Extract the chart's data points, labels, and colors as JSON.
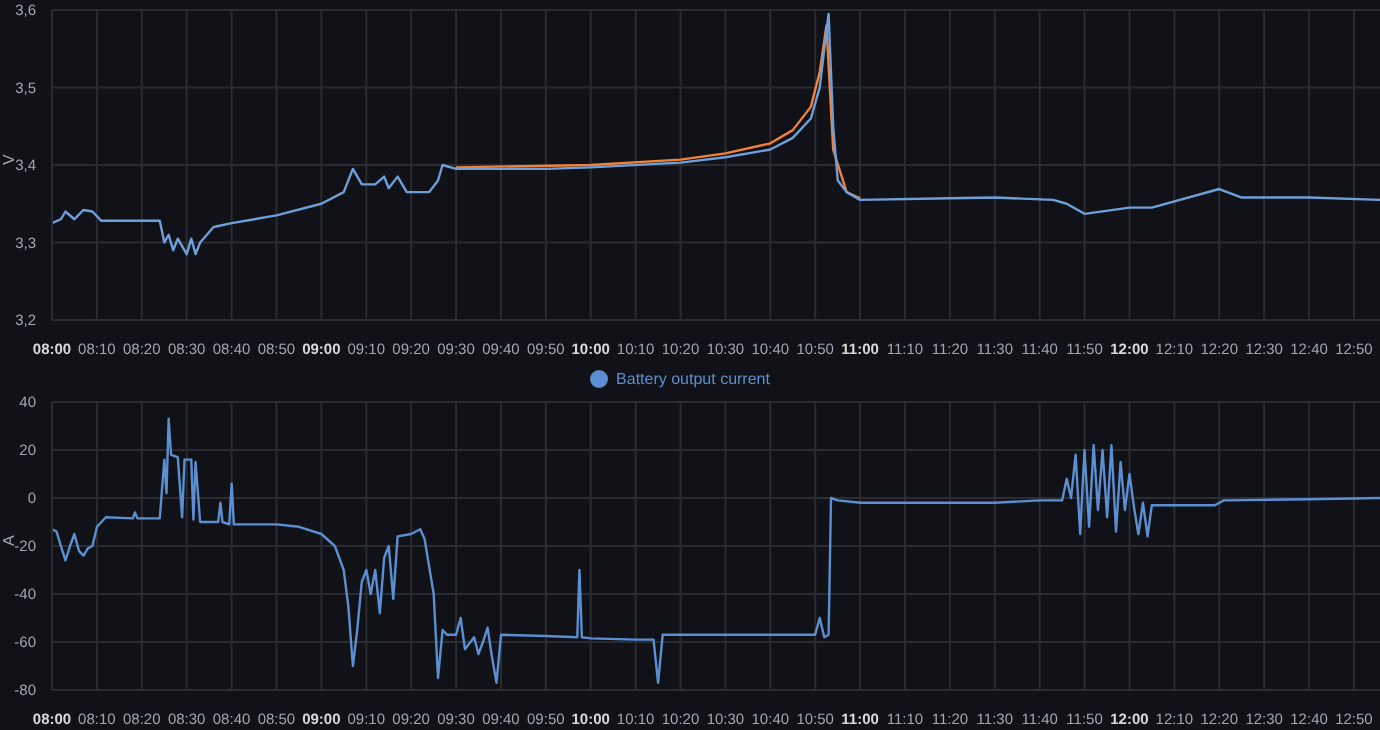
{
  "chart_data": [
    {
      "type": "line",
      "ylabel": "V",
      "xlim": [
        8,
        12.93
      ],
      "ylim": [
        3.2,
        3.6
      ],
      "yticks": [
        {
          "value": 3.2,
          "label": "3,2"
        },
        {
          "value": 3.3,
          "label": "3,3"
        },
        {
          "value": 3.4,
          "label": "3,4"
        },
        {
          "value": 3.5,
          "label": "3,5"
        },
        {
          "value": 3.6,
          "label": "3,6"
        }
      ],
      "xticks": [
        {
          "value": 8,
          "label": "08:00"
        },
        {
          "value": 8.1667,
          "label": "08:10"
        },
        {
          "value": 8.3333,
          "label": "08:20"
        },
        {
          "value": 8.5,
          "label": "08:30"
        },
        {
          "value": 8.6667,
          "label": "08:40"
        },
        {
          "value": 8.8333,
          "label": "08:50"
        },
        {
          "value": 9,
          "label": "09:00"
        },
        {
          "value": 9.1667,
          "label": "09:10"
        },
        {
          "value": 9.3333,
          "label": "09:20"
        },
        {
          "value": 9.5,
          "label": "09:30"
        },
        {
          "value": 9.6667,
          "label": "09:40"
        },
        {
          "value": 9.8333,
          "label": "09:50"
        },
        {
          "value": 10,
          "label": "10:00"
        },
        {
          "value": 10.1667,
          "label": "10:10"
        },
        {
          "value": 10.3333,
          "label": "10:20"
        },
        {
          "value": 10.5,
          "label": "10:30"
        },
        {
          "value": 10.6667,
          "label": "10:40"
        },
        {
          "value": 10.8333,
          "label": "10:50"
        },
        {
          "value": 11,
          "label": "11:00"
        },
        {
          "value": 11.1667,
          "label": "11:10"
        },
        {
          "value": 11.3333,
          "label": "11:20"
        },
        {
          "value": 11.5,
          "label": "11:30"
        },
        {
          "value": 11.6667,
          "label": "11:40"
        },
        {
          "value": 11.8333,
          "label": "11:50"
        },
        {
          "value": 12,
          "label": "12:00"
        },
        {
          "value": 12.1667,
          "label": "12:10"
        },
        {
          "value": 12.3333,
          "label": "12:20"
        },
        {
          "value": 12.5,
          "label": "12:30"
        },
        {
          "value": 12.6667,
          "label": "12:40"
        },
        {
          "value": 12.8333,
          "label": "12:50"
        }
      ],
      "grid": true,
      "marker": "none",
      "line_style": "solid",
      "legend": false,
      "series": [
        {
          "color": "#f2813a",
          "x": [
            9.5,
            10,
            10.333,
            10.5,
            10.667,
            10.75,
            10.817,
            10.85,
            10.867,
            10.875,
            10.9,
            10.95,
            11
          ],
          "values": [
            3.397,
            3.4,
            3.407,
            3.415,
            3.428,
            3.445,
            3.475,
            3.52,
            3.56,
            3.58,
            3.42,
            3.365,
            3.357
          ]
        },
        {
          "color": "#6e9fd8",
          "x": [
            8,
            8.033,
            8.05,
            8.083,
            8.117,
            8.15,
            8.183,
            8.4,
            8.417,
            8.433,
            8.45,
            8.467,
            8.5,
            8.517,
            8.533,
            8.55,
            8.6,
            8.667,
            8.833,
            9,
            9.083,
            9.117,
            9.15,
            9.2,
            9.233,
            9.25,
            9.283,
            9.317,
            9.4,
            9.433,
            9.45,
            9.5,
            9.667,
            9.833,
            10,
            10.333,
            10.5,
            10.667,
            10.75,
            10.817,
            10.85,
            10.867,
            10.883,
            10.9,
            10.917,
            10.95,
            11,
            11.333,
            11.5,
            11.717,
            11.767,
            11.833,
            12,
            12.083,
            12.333,
            12.417,
            12.667,
            12.93
          ],
          "values": [
            3.325,
            3.33,
            3.34,
            3.33,
            3.342,
            3.34,
            3.328,
            3.328,
            3.3,
            3.31,
            3.29,
            3.305,
            3.285,
            3.305,
            3.285,
            3.3,
            3.32,
            3.325,
            3.335,
            3.35,
            3.365,
            3.395,
            3.375,
            3.375,
            3.385,
            3.37,
            3.385,
            3.365,
            3.365,
            3.38,
            3.4,
            3.395,
            3.395,
            3.395,
            3.397,
            3.403,
            3.41,
            3.42,
            3.435,
            3.46,
            3.5,
            3.55,
            3.595,
            3.45,
            3.38,
            3.365,
            3.355,
            3.357,
            3.358,
            3.355,
            3.35,
            3.337,
            3.345,
            3.345,
            3.369,
            3.358,
            3.358,
            3.355
          ]
        }
      ]
    },
    {
      "type": "line",
      "ylabel": "A",
      "xlim": [
        8,
        12.93
      ],
      "ylim": [
        -80,
        40
      ],
      "yticks": [
        -80,
        -60,
        -40,
        -20,
        0,
        20,
        40
      ],
      "xticks": [
        {
          "value": 8,
          "label": "08:00"
        },
        {
          "value": 8.1667,
          "label": "08:10"
        },
        {
          "value": 8.3333,
          "label": "08:20"
        },
        {
          "value": 8.5,
          "label": "08:30"
        },
        {
          "value": 8.6667,
          "label": "08:40"
        },
        {
          "value": 8.8333,
          "label": "08:50"
        },
        {
          "value": 9,
          "label": "09:00"
        },
        {
          "value": 9.1667,
          "label": "09:10"
        },
        {
          "value": 9.3333,
          "label": "09:20"
        },
        {
          "value": 9.5,
          "label": "09:30"
        },
        {
          "value": 9.6667,
          "label": "09:40"
        },
        {
          "value": 9.8333,
          "label": "09:50"
        },
        {
          "value": 10,
          "label": "10:00"
        },
        {
          "value": 10.1667,
          "label": "10:10"
        },
        {
          "value": 10.3333,
          "label": "10:20"
        },
        {
          "value": 10.5,
          "label": "10:30"
        },
        {
          "value": 10.6667,
          "label": "10:40"
        },
        {
          "value": 10.8333,
          "label": "10:50"
        },
        {
          "value": 11,
          "label": "11:00"
        },
        {
          "value": 11.1667,
          "label": "11:10"
        },
        {
          "value": 11.3333,
          "label": "11:20"
        },
        {
          "value": 11.5,
          "label": "11:30"
        },
        {
          "value": 11.6667,
          "label": "11:40"
        },
        {
          "value": 11.8333,
          "label": "11:50"
        },
        {
          "value": 12,
          "label": "12:00"
        },
        {
          "value": 12.1667,
          "label": "12:10"
        },
        {
          "value": 12.3333,
          "label": "12:20"
        },
        {
          "value": 12.5,
          "label": "12:30"
        },
        {
          "value": 12.6667,
          "label": "12:40"
        },
        {
          "value": 12.8333,
          "label": "12:50"
        }
      ],
      "grid": true,
      "marker": "none",
      "line_style": "solid",
      "legend": "top",
      "series": [
        {
          "name": "Battery output current",
          "color": "#5b8fd1",
          "x": [
            8,
            8.017,
            8.033,
            8.05,
            8.067,
            8.083,
            8.1,
            8.117,
            8.133,
            8.15,
            8.167,
            8.2,
            8.3,
            8.308,
            8.317,
            8.4,
            8.417,
            8.425,
            8.433,
            8.442,
            8.467,
            8.483,
            8.492,
            8.517,
            8.525,
            8.533,
            8.55,
            8.617,
            8.625,
            8.633,
            8.658,
            8.667,
            8.675,
            8.833,
            8.917,
            9,
            9.05,
            9.083,
            9.1,
            9.117,
            9.133,
            9.15,
            9.167,
            9.183,
            9.2,
            9.217,
            9.233,
            9.25,
            9.267,
            9.283,
            9.333,
            9.367,
            9.383,
            9.417,
            9.433,
            9.45,
            9.467,
            9.5,
            9.517,
            9.533,
            9.567,
            9.583,
            9.6,
            9.617,
            9.633,
            9.65,
            9.667,
            9.833,
            9.95,
            9.958,
            9.967,
            10,
            10.167,
            10.233,
            10.25,
            10.267,
            10.5,
            10.667,
            10.833,
            10.85,
            10.867,
            10.883,
            10.892,
            10.917,
            11,
            11.5,
            11.667,
            11.75,
            11.767,
            11.783,
            11.8,
            11.817,
            11.833,
            11.85,
            11.867,
            11.883,
            11.9,
            11.917,
            11.933,
            11.95,
            11.967,
            11.983,
            12,
            12.017,
            12.033,
            12.05,
            12.067,
            12.083,
            12.317,
            12.35,
            12.667,
            12.93
          ],
          "values": [
            -13,
            -14,
            -20,
            -26,
            -20,
            -15,
            -22,
            -24,
            -21,
            -20,
            -12,
            -8,
            -8.5,
            -6,
            -8.5,
            -8.5,
            16,
            2,
            33,
            18,
            17,
            -8,
            16,
            16,
            -9,
            15,
            -10,
            -10,
            -2,
            -10,
            -11,
            6,
            -11,
            -11,
            -12,
            -15,
            -20,
            -30,
            -45,
            -70,
            -55,
            -35,
            -30,
            -40,
            -30,
            -48,
            -25,
            -20,
            -42,
            -16,
            -15,
            -13,
            -17,
            -40,
            -75,
            -55,
            -57,
            -57,
            -50,
            -63,
            -58,
            -65,
            -60,
            -54,
            -66,
            -77,
            -57,
            -57.5,
            -58,
            -30,
            -58,
            -58.5,
            -59,
            -59,
            -77,
            -57,
            -57,
            -57,
            -57,
            -50,
            -58,
            -57,
            0,
            -1,
            -2,
            -2,
            -1,
            -1,
            8,
            0,
            18,
            -15,
            20,
            -12,
            22,
            -5,
            20,
            -8,
            22,
            -14,
            15,
            -5,
            10,
            -4,
            -15,
            -2,
            -16,
            -3,
            -3,
            -1,
            -0.5,
            0
          ]
        }
      ]
    }
  ]
}
